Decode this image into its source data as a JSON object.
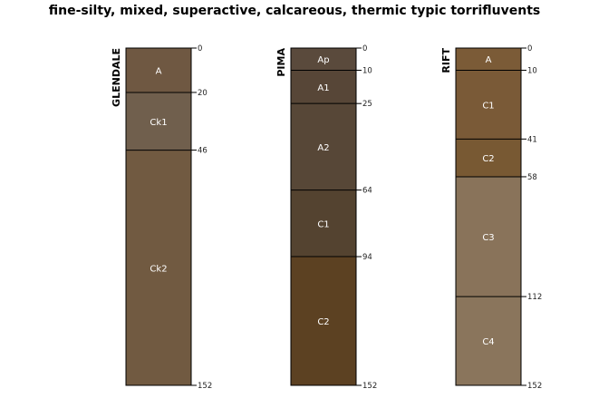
{
  "title": "fine-silty, mixed, superactive, calcareous, thermic typic torrifluvents",
  "max_depth": 152,
  "profiles": [
    {
      "name": "GLENDALE",
      "horizons": [
        {
          "name": "A",
          "top": 0,
          "bottom": 20,
          "color": "#6f5842"
        },
        {
          "name": "Ck1",
          "top": 20,
          "bottom": 46,
          "color": "#705f4d"
        },
        {
          "name": "Ck2",
          "top": 46,
          "bottom": 152,
          "color": "#715a41"
        }
      ],
      "depth_labels": [
        "0",
        "20",
        "46",
        "152"
      ]
    },
    {
      "name": "PIMA",
      "horizons": [
        {
          "name": "Ap",
          "top": 0,
          "bottom": 10,
          "color": "#5a4a3c"
        },
        {
          "name": "A1",
          "top": 10,
          "bottom": 25,
          "color": "#574637"
        },
        {
          "name": "A2",
          "top": 25,
          "bottom": 64,
          "color": "#574737"
        },
        {
          "name": "C1",
          "top": 64,
          "bottom": 94,
          "color": "#544330"
        },
        {
          "name": "C2",
          "top": 94,
          "bottom": 152,
          "color": "#5c4122"
        }
      ],
      "depth_labels": [
        "0",
        "10",
        "25",
        "64",
        "94",
        "152"
      ]
    },
    {
      "name": "RIFT",
      "horizons": [
        {
          "name": "A",
          "top": 0,
          "bottom": 10,
          "color": "#7b5b37"
        },
        {
          "name": "C1",
          "top": 10,
          "bottom": 41,
          "color": "#7a5a37"
        },
        {
          "name": "C2",
          "top": 41,
          "bottom": 58,
          "color": "#785933"
        },
        {
          "name": "C3",
          "top": 58,
          "bottom": 112,
          "color": "#89735a"
        },
        {
          "name": "C4",
          "top": 112,
          "bottom": 152,
          "color": "#8a755c"
        }
      ],
      "depth_labels": [
        "0",
        "10",
        "41",
        "58",
        "112",
        "152"
      ]
    }
  ]
}
